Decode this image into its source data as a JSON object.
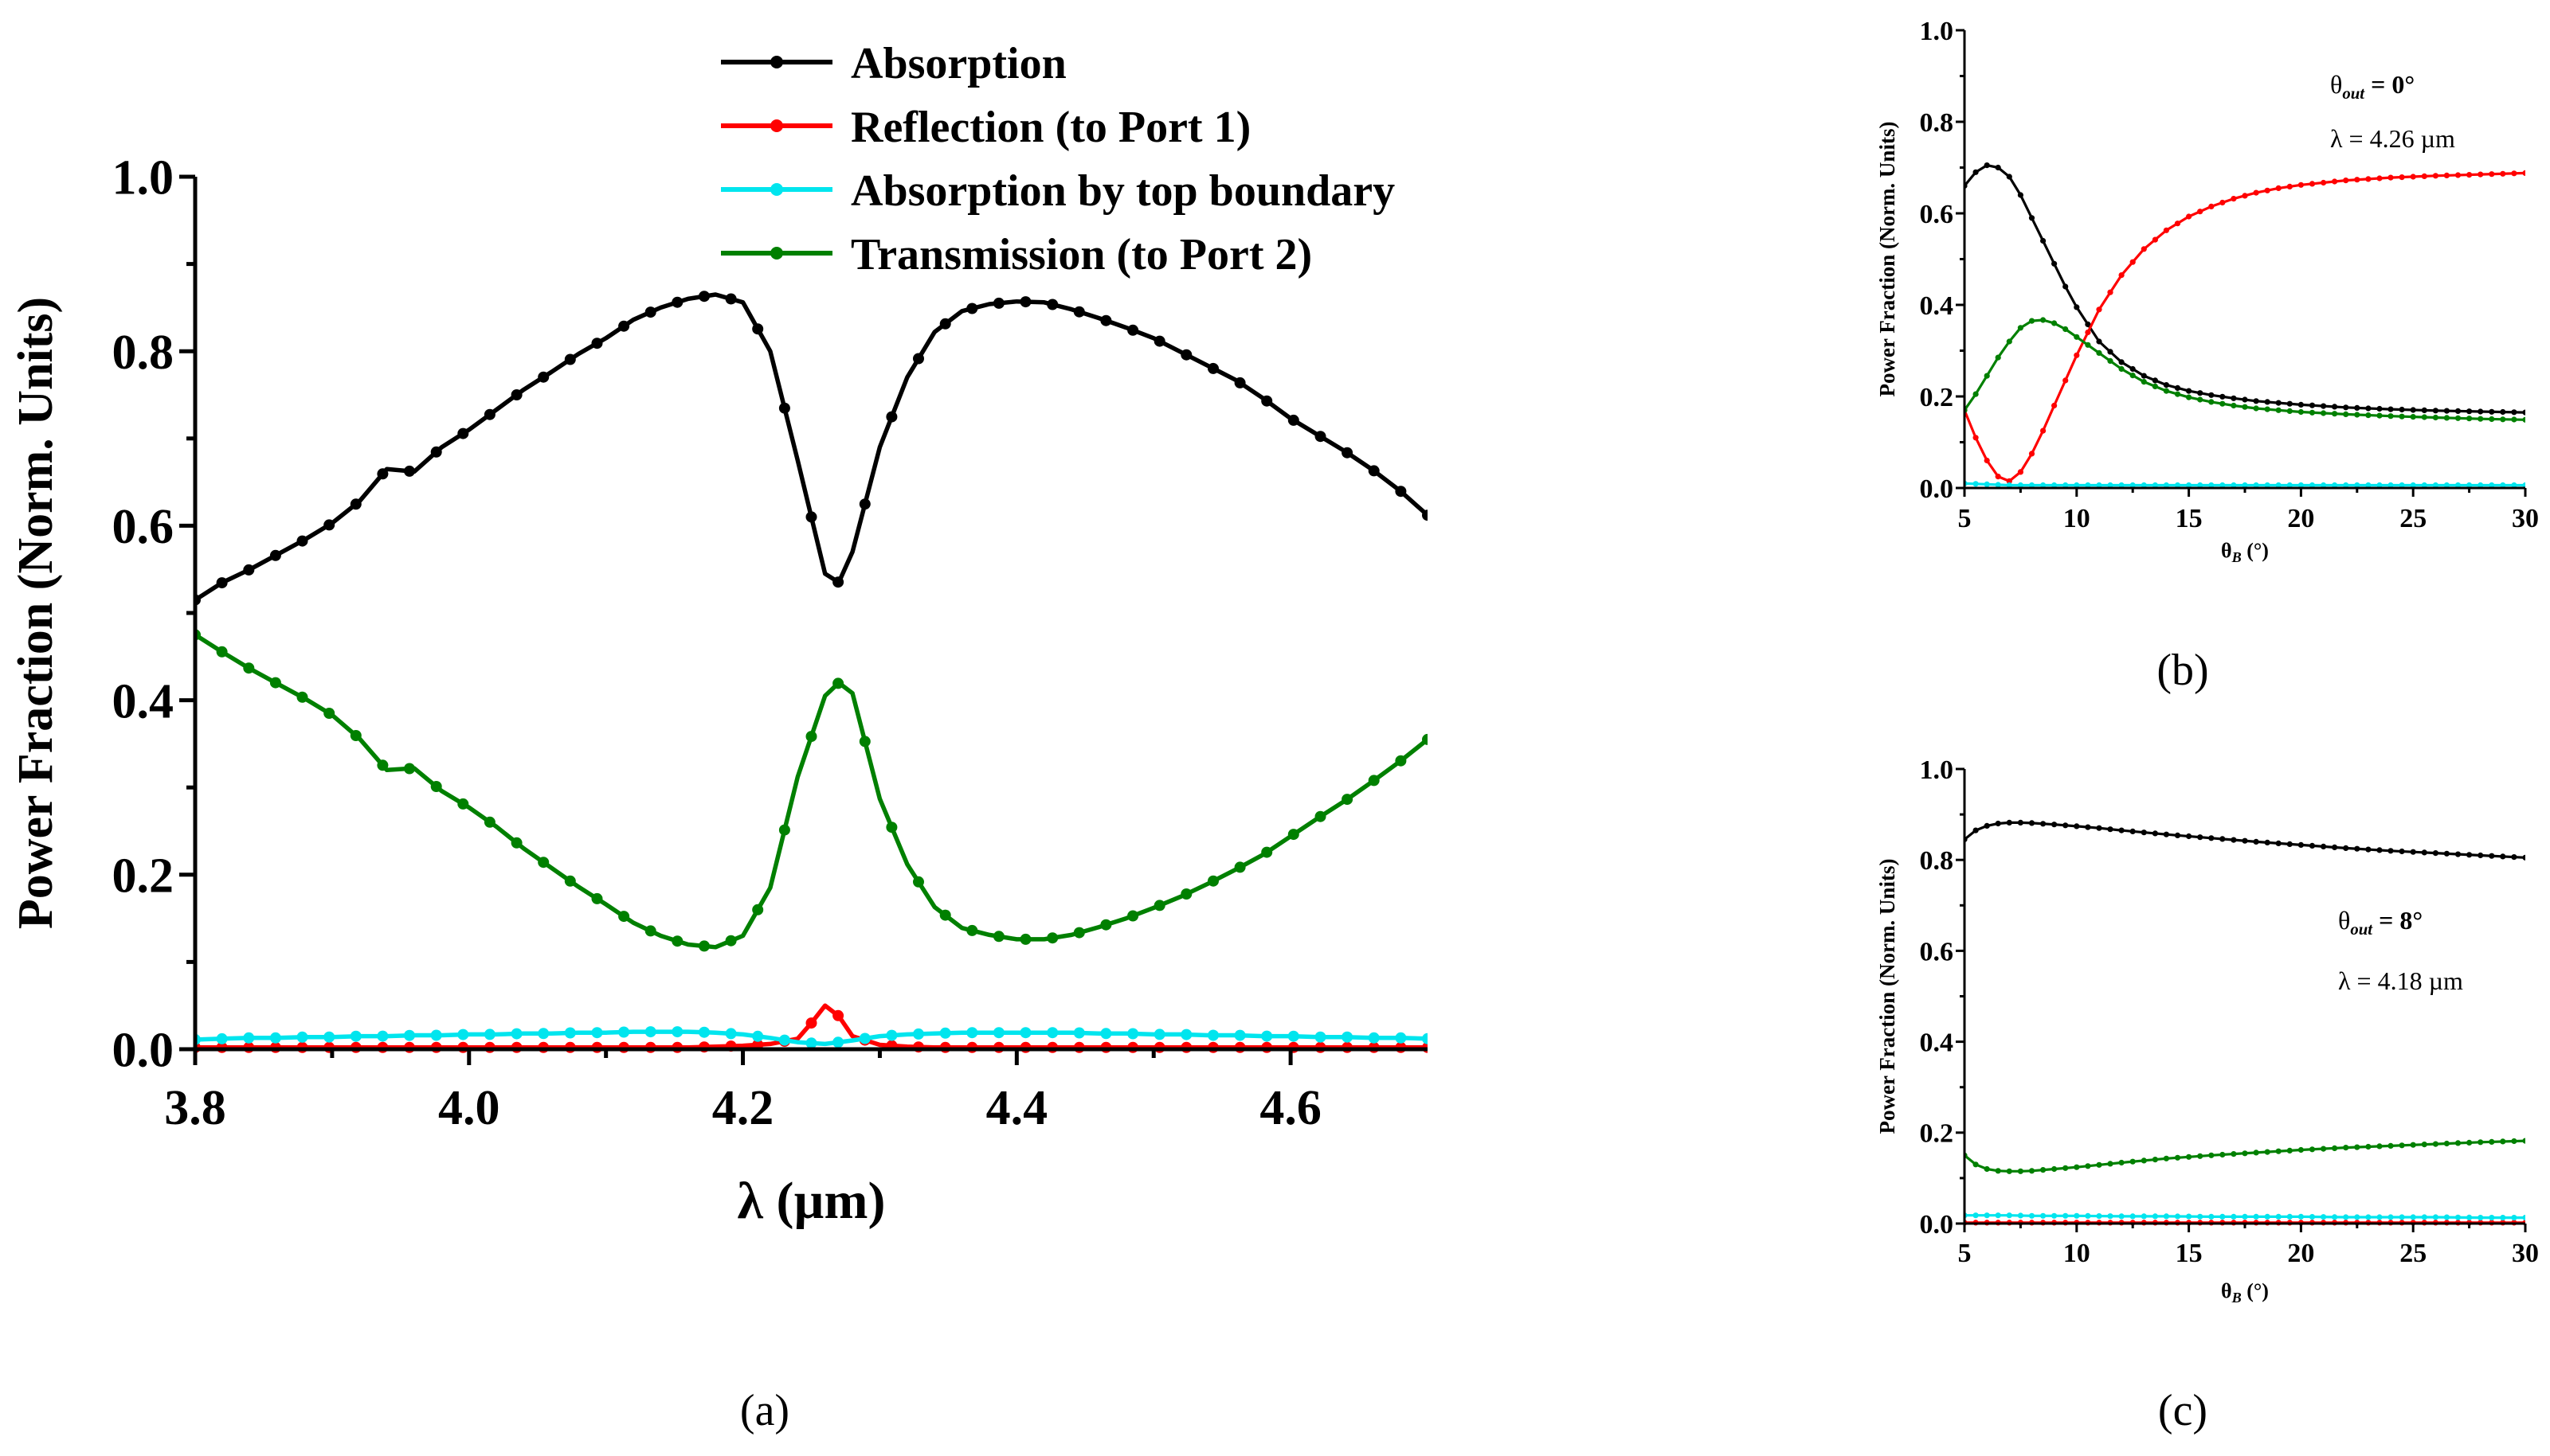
{
  "figure_labels": {
    "a": "(a)",
    "b": "(b)",
    "c": "(c)"
  },
  "colors": {
    "absorption": "#000000",
    "reflection": "#ff0000",
    "top_boundary": "#00e5ee",
    "transmission": "#008000",
    "axes": "#000000"
  },
  "chart_data": [
    {
      "id": "a",
      "type": "line",
      "xlabel": "λ (µm)",
      "ylabel": "Power Fraction (Norm. Units)",
      "xlim": [
        3.8,
        4.7
      ],
      "ylim": [
        0,
        1
      ],
      "xticks": [
        "3.8",
        "4.0",
        "4.2",
        "4.4",
        "4.6"
      ],
      "yticks": [
        "0.0",
        "0.2",
        "0.4",
        "0.6",
        "0.8",
        "1.0"
      ],
      "legend": {
        "position": "top",
        "entries": [
          "Absorption",
          "Reflection (to Port 1)",
          "Absorption by top boundary",
          "Transmission (to Port 2)"
        ]
      },
      "series": [
        {
          "name": "Absorption",
          "color": "#000000",
          "x": [
            3.8,
            3.82,
            3.84,
            3.86,
            3.88,
            3.9,
            3.92,
            3.94,
            3.96,
            3.98,
            4.0,
            4.02,
            4.04,
            4.06,
            4.08,
            4.1,
            4.12,
            4.14,
            4.16,
            4.18,
            4.2,
            4.22,
            4.24,
            4.26,
            4.27,
            4.28,
            4.3,
            4.32,
            4.34,
            4.36,
            4.38,
            4.4,
            4.42,
            4.44,
            4.46,
            4.48,
            4.5,
            4.52,
            4.54,
            4.56,
            4.58,
            4.6,
            4.62,
            4.64,
            4.66,
            4.68,
            4.7
          ],
          "values": [
            0.515,
            0.535,
            0.55,
            0.567,
            0.584,
            0.603,
            0.628,
            0.665,
            0.662,
            0.69,
            0.71,
            0.733,
            0.756,
            0.776,
            0.797,
            0.815,
            0.836,
            0.85,
            0.86,
            0.865,
            0.856,
            0.8,
            0.675,
            0.545,
            0.535,
            0.57,
            0.69,
            0.77,
            0.822,
            0.846,
            0.854,
            0.857,
            0.856,
            0.848,
            0.838,
            0.827,
            0.815,
            0.799,
            0.783,
            0.767,
            0.746,
            0.723,
            0.704,
            0.685,
            0.664,
            0.64,
            0.612
          ]
        },
        {
          "name": "Reflection (to Port 1)",
          "color": "#ff0000",
          "x": [
            3.8,
            3.82,
            3.84,
            3.86,
            3.88,
            3.9,
            3.92,
            3.94,
            3.96,
            3.98,
            4.0,
            4.02,
            4.04,
            4.06,
            4.08,
            4.1,
            4.12,
            4.14,
            4.16,
            4.18,
            4.2,
            4.22,
            4.24,
            4.25,
            4.26,
            4.27,
            4.28,
            4.3,
            4.32,
            4.34,
            4.36,
            4.38,
            4.4,
            4.42,
            4.44,
            4.46,
            4.48,
            4.5,
            4.52,
            4.54,
            4.56,
            4.58,
            4.6,
            4.62,
            4.64,
            4.66,
            4.68,
            4.7
          ],
          "values": [
            0.002,
            0.002,
            0.002,
            0.002,
            0.002,
            0.002,
            0.002,
            0.002,
            0.002,
            0.002,
            0.002,
            0.002,
            0.002,
            0.002,
            0.002,
            0.002,
            0.002,
            0.002,
            0.002,
            0.003,
            0.004,
            0.006,
            0.012,
            0.03,
            0.05,
            0.038,
            0.015,
            0.005,
            0.003,
            0.002,
            0.002,
            0.002,
            0.002,
            0.002,
            0.002,
            0.002,
            0.002,
            0.002,
            0.002,
            0.002,
            0.002,
            0.002,
            0.002,
            0.002,
            0.002,
            0.002,
            0.002,
            0.002
          ]
        },
        {
          "name": "Absorption by top boundary",
          "color": "#00e5ee",
          "x": [
            3.8,
            3.82,
            3.84,
            3.86,
            3.88,
            3.9,
            3.92,
            3.94,
            3.96,
            3.98,
            4.0,
            4.02,
            4.04,
            4.06,
            4.08,
            4.1,
            4.12,
            4.14,
            4.16,
            4.18,
            4.2,
            4.22,
            4.24,
            4.26,
            4.28,
            4.3,
            4.32,
            4.34,
            4.36,
            4.38,
            4.4,
            4.42,
            4.44,
            4.46,
            4.48,
            4.5,
            4.52,
            4.54,
            4.56,
            4.58,
            4.6,
            4.62,
            4.64,
            4.66,
            4.68,
            4.7
          ],
          "values": [
            0.011,
            0.012,
            0.013,
            0.013,
            0.014,
            0.014,
            0.015,
            0.015,
            0.016,
            0.016,
            0.017,
            0.017,
            0.018,
            0.018,
            0.019,
            0.019,
            0.02,
            0.02,
            0.02,
            0.019,
            0.017,
            0.013,
            0.008,
            0.006,
            0.01,
            0.015,
            0.017,
            0.018,
            0.019,
            0.019,
            0.019,
            0.019,
            0.019,
            0.018,
            0.018,
            0.017,
            0.017,
            0.016,
            0.016,
            0.015,
            0.015,
            0.014,
            0.014,
            0.013,
            0.013,
            0.012
          ]
        },
        {
          "name": "Transmission (to Port 2)",
          "color": "#008000",
          "x": [
            3.8,
            3.82,
            3.84,
            3.86,
            3.88,
            3.9,
            3.92,
            3.94,
            3.96,
            3.98,
            4.0,
            4.02,
            4.04,
            4.06,
            4.08,
            4.1,
            4.12,
            4.14,
            4.16,
            4.18,
            4.2,
            4.22,
            4.24,
            4.26,
            4.27,
            4.28,
            4.3,
            4.32,
            4.34,
            4.36,
            4.38,
            4.4,
            4.42,
            4.44,
            4.46,
            4.48,
            4.5,
            4.52,
            4.54,
            4.56,
            4.58,
            4.6,
            4.62,
            4.64,
            4.66,
            4.68,
            4.7
          ],
          "values": [
            0.475,
            0.455,
            0.436,
            0.419,
            0.402,
            0.383,
            0.356,
            0.32,
            0.322,
            0.296,
            0.277,
            0.255,
            0.23,
            0.208,
            0.186,
            0.166,
            0.145,
            0.13,
            0.12,
            0.117,
            0.13,
            0.185,
            0.312,
            0.405,
            0.42,
            0.408,
            0.287,
            0.212,
            0.163,
            0.139,
            0.131,
            0.126,
            0.126,
            0.131,
            0.14,
            0.15,
            0.162,
            0.175,
            0.19,
            0.206,
            0.223,
            0.244,
            0.265,
            0.285,
            0.307,
            0.33,
            0.355
          ]
        }
      ]
    },
    {
      "id": "b",
      "type": "line",
      "xlabel": "θ",
      "xlabel_sub": "B",
      "xlabel_unit": " (°)",
      "ylabel": "Power Fraction (Norm. Units)",
      "xlim": [
        5,
        30
      ],
      "ylim": [
        0,
        1
      ],
      "xticks": [
        "5",
        "10",
        "15",
        "20",
        "25",
        "30"
      ],
      "yticks": [
        "0.0",
        "0.2",
        "0.4",
        "0.6",
        "0.8",
        "1.0"
      ],
      "annotation": {
        "theta": "θ",
        "theta_sub": "out",
        "theta_value": "= 0°",
        "lambda": "λ = 4.26 µm"
      },
      "series": [
        {
          "name": "Absorption",
          "color": "#000000",
          "x": [
            5,
            5.5,
            6,
            6.5,
            7,
            7.5,
            8,
            8.5,
            9,
            9.5,
            10,
            11,
            12,
            13,
            14,
            15,
            16,
            17,
            18,
            19,
            20,
            22,
            24,
            26,
            28,
            30
          ],
          "values": [
            0.66,
            0.69,
            0.705,
            0.7,
            0.68,
            0.64,
            0.59,
            0.54,
            0.49,
            0.44,
            0.395,
            0.32,
            0.275,
            0.245,
            0.225,
            0.212,
            0.203,
            0.196,
            0.19,
            0.186,
            0.182,
            0.176,
            0.172,
            0.169,
            0.167,
            0.165
          ]
        },
        {
          "name": "Reflection (to Port 1)",
          "color": "#ff0000",
          "x": [
            5,
            5.5,
            6,
            6.5,
            7,
            7.5,
            8,
            8.5,
            9,
            9.5,
            10,
            11,
            12,
            13,
            14,
            15,
            16,
            17,
            18,
            19,
            20,
            22,
            24,
            26,
            28,
            30
          ],
          "values": [
            0.17,
            0.11,
            0.06,
            0.025,
            0.015,
            0.035,
            0.075,
            0.125,
            0.18,
            0.235,
            0.29,
            0.39,
            0.465,
            0.522,
            0.563,
            0.593,
            0.615,
            0.632,
            0.645,
            0.655,
            0.662,
            0.672,
            0.678,
            0.682,
            0.685,
            0.688
          ]
        },
        {
          "name": "Absorption by top boundary",
          "color": "#00e5ee",
          "x": [
            5,
            6,
            7,
            8,
            9,
            10,
            12,
            14,
            16,
            18,
            20,
            22,
            24,
            26,
            28,
            30
          ],
          "values": [
            0.01,
            0.008,
            0.006,
            0.006,
            0.006,
            0.006,
            0.006,
            0.006,
            0.006,
            0.006,
            0.006,
            0.006,
            0.006,
            0.006,
            0.006,
            0.006
          ]
        },
        {
          "name": "Transmission (to Port 2)",
          "color": "#008000",
          "x": [
            5,
            5.5,
            6,
            6.5,
            7,
            7.5,
            8,
            8.5,
            9,
            9.5,
            10,
            11,
            12,
            13,
            14,
            15,
            16,
            17,
            18,
            19,
            20,
            22,
            24,
            26,
            28,
            30
          ],
          "values": [
            0.17,
            0.205,
            0.245,
            0.285,
            0.32,
            0.35,
            0.365,
            0.367,
            0.36,
            0.347,
            0.33,
            0.295,
            0.26,
            0.232,
            0.212,
            0.198,
            0.188,
            0.18,
            0.174,
            0.17,
            0.166,
            0.161,
            0.157,
            0.154,
            0.151,
            0.149
          ]
        }
      ]
    },
    {
      "id": "c",
      "type": "line",
      "xlabel": "θ",
      "xlabel_sub": "B",
      "xlabel_unit": " (°)",
      "ylabel": "Power Fraction (Norm. Units)",
      "xlim": [
        5,
        30
      ],
      "ylim": [
        0,
        1
      ],
      "xticks": [
        "5",
        "10",
        "15",
        "20",
        "25",
        "30"
      ],
      "yticks": [
        "0.0",
        "0.2",
        "0.4",
        "0.6",
        "0.8",
        "1.0"
      ],
      "annotation": {
        "theta": "θ",
        "theta_sub": "out",
        "theta_value": "= 8°",
        "lambda": "λ = 4.18 µm"
      },
      "series": [
        {
          "name": "Absorption",
          "color": "#000000",
          "x": [
            5,
            5.5,
            6,
            6.5,
            7,
            7.5,
            8,
            9,
            10,
            11,
            12,
            14,
            16,
            18,
            20,
            22,
            24,
            26,
            28,
            30
          ],
          "values": [
            0.845,
            0.865,
            0.875,
            0.88,
            0.882,
            0.882,
            0.881,
            0.878,
            0.874,
            0.87,
            0.865,
            0.856,
            0.848,
            0.84,
            0.833,
            0.826,
            0.82,
            0.815,
            0.81,
            0.805
          ]
        },
        {
          "name": "Reflection (to Port 1)",
          "color": "#ff0000",
          "x": [
            5,
            6,
            7,
            8,
            10,
            12,
            14,
            16,
            18,
            20,
            22,
            24,
            26,
            28,
            30
          ],
          "values": [
            0.002,
            0.002,
            0.002,
            0.002,
            0.002,
            0.002,
            0.002,
            0.002,
            0.002,
            0.002,
            0.002,
            0.002,
            0.002,
            0.002,
            0.002
          ]
        },
        {
          "name": "Absorption by top boundary",
          "color": "#00e5ee",
          "x": [
            5,
            6,
            7,
            8,
            10,
            12,
            14,
            16,
            18,
            20,
            22,
            24,
            26,
            28,
            30
          ],
          "values": [
            0.018,
            0.018,
            0.018,
            0.017,
            0.017,
            0.016,
            0.016,
            0.015,
            0.015,
            0.015,
            0.014,
            0.014,
            0.014,
            0.013,
            0.013
          ]
        },
        {
          "name": "Transmission (to Port 2)",
          "color": "#008000",
          "x": [
            5,
            5.5,
            6,
            6.5,
            7,
            7.5,
            8,
            9,
            10,
            11,
            12,
            14,
            16,
            18,
            20,
            22,
            24,
            26,
            28,
            30
          ],
          "values": [
            0.15,
            0.13,
            0.12,
            0.116,
            0.115,
            0.115,
            0.116,
            0.12,
            0.124,
            0.129,
            0.134,
            0.143,
            0.15,
            0.156,
            0.162,
            0.167,
            0.171,
            0.175,
            0.179,
            0.182
          ]
        }
      ]
    }
  ]
}
